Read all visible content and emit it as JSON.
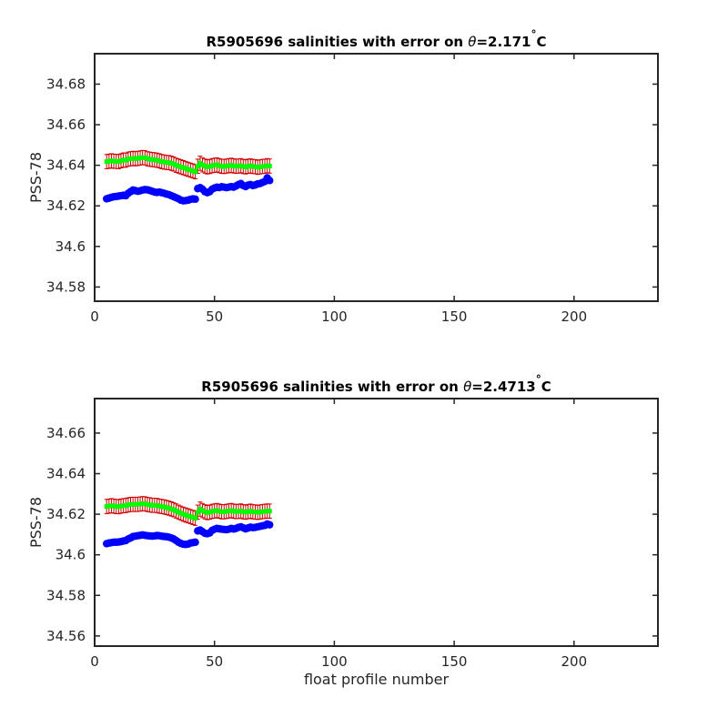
{
  "figure": {
    "xlabel": "float profile number"
  },
  "colors": {
    "raw_salinity": "#0000ff",
    "calibrated_salinity": "#00ff00",
    "error_bar": "#cc0000",
    "axes": "#262626"
  },
  "chart_data": [
    {
      "type": "scatter",
      "title_prefix": "R5905696 salinities with error on ",
      "title_theta": "θ",
      "title_value": "=2.171",
      "title_degree": "°",
      "title_unit": "C",
      "xlabel": "",
      "ylabel": "PSS-78",
      "xlim": [
        0,
        235
      ],
      "ylim": [
        34.573,
        34.695
      ],
      "xticks": [
        0,
        50,
        100,
        150,
        200
      ],
      "xtick_labels": [
        "0",
        "50",
        "100",
        "150",
        "200"
      ],
      "yticks": [
        34.58,
        34.6,
        34.62,
        34.64,
        34.66,
        34.68
      ],
      "ytick_labels": [
        "34.58",
        "34.6",
        "34.62",
        "34.64",
        "34.66",
        "34.68"
      ],
      "grid": false,
      "x": [
        5,
        6,
        7,
        8,
        9,
        10,
        11,
        12,
        13,
        14,
        15,
        16,
        17,
        18,
        19,
        20,
        21,
        22,
        23,
        24,
        25,
        26,
        27,
        28,
        29,
        30,
        31,
        32,
        33,
        34,
        35,
        36,
        37,
        38,
        39,
        40,
        41,
        42,
        43,
        44,
        45,
        46,
        47,
        48,
        49,
        50,
        51,
        52,
        53,
        54,
        55,
        56,
        57,
        58,
        59,
        60,
        61,
        62,
        63,
        64,
        65,
        66,
        67,
        68,
        69,
        70,
        71,
        72,
        73
      ],
      "series": [
        {
          "role": "raw",
          "values": [
            34.6235,
            34.6238,
            34.6242,
            34.6245,
            34.6246,
            34.6248,
            34.625,
            34.6252,
            34.625,
            34.6262,
            34.627,
            34.6278,
            34.6275,
            34.6272,
            34.6274,
            34.6278,
            34.628,
            34.6279,
            34.6276,
            34.6272,
            34.6268,
            34.6266,
            34.6268,
            34.6265,
            34.6262,
            34.6258,
            34.6255,
            34.625,
            34.6245,
            34.624,
            34.6235,
            34.6228,
            34.6225,
            34.6226,
            34.6228,
            34.6232,
            34.6234,
            34.6233,
            34.6285,
            34.629,
            34.6282,
            34.627,
            34.6265,
            34.627,
            34.6282,
            34.6288,
            34.6292,
            34.629,
            34.6294,
            34.6292,
            34.629,
            34.6292,
            34.6295,
            34.6292,
            34.6298,
            34.6305,
            34.631,
            34.63,
            34.6295,
            34.6302,
            34.6305,
            34.63,
            34.6303,
            34.6308,
            34.631,
            34.6315,
            34.632,
            34.6338,
            34.6325
          ]
        },
        {
          "role": "calibrated",
          "values": [
            34.6418,
            34.642,
            34.6422,
            34.642,
            34.6419,
            34.6418,
            34.6422,
            34.6426,
            34.6425,
            34.643,
            34.6432,
            34.6434,
            34.6432,
            34.6434,
            34.6436,
            34.6438,
            34.6437,
            34.6432,
            34.643,
            34.6428,
            34.6427,
            34.6425,
            34.6422,
            34.6418,
            34.6416,
            34.6414,
            34.6413,
            34.641,
            34.6406,
            34.64,
            34.6396,
            34.6392,
            34.6388,
            34.6384,
            34.638,
            34.6376,
            34.6372,
            34.6368,
            34.6395,
            34.641,
            34.6402,
            34.6396,
            34.6392,
            34.6394,
            34.6398,
            34.64,
            34.6402,
            34.6398,
            34.6395,
            34.6394,
            34.6396,
            34.6398,
            34.64,
            34.6397,
            34.6395,
            34.6396,
            34.6398,
            34.6394,
            34.6392,
            34.6395,
            34.6397,
            34.6394,
            34.6393,
            34.639,
            34.6392,
            34.6394,
            34.6395,
            34.6398,
            34.6396
          ]
        }
      ],
      "error": 0.0035
    },
    {
      "type": "scatter",
      "title_prefix": "R5905696 salinities with error on ",
      "title_theta": "θ",
      "title_value": "=2.4713",
      "title_degree": "°",
      "title_unit": "C",
      "xlabel": "float profile number",
      "ylabel": "PSS-78",
      "xlim": [
        0,
        235
      ],
      "ylim": [
        34.555,
        34.677
      ],
      "xticks": [
        0,
        50,
        100,
        150,
        200
      ],
      "xtick_labels": [
        "0",
        "50",
        "100",
        "150",
        "200"
      ],
      "yticks": [
        34.56,
        34.58,
        34.6,
        34.62,
        34.64,
        34.66
      ],
      "ytick_labels": [
        "34.56",
        "34.58",
        "34.6",
        "34.62",
        "34.64",
        "34.66"
      ],
      "grid": false,
      "x": [
        5,
        6,
        7,
        8,
        9,
        10,
        11,
        12,
        13,
        14,
        15,
        16,
        17,
        18,
        19,
        20,
        21,
        22,
        23,
        24,
        25,
        26,
        27,
        28,
        29,
        30,
        31,
        32,
        33,
        34,
        35,
        36,
        37,
        38,
        39,
        40,
        41,
        42,
        43,
        44,
        45,
        46,
        47,
        48,
        49,
        50,
        51,
        52,
        53,
        54,
        55,
        56,
        57,
        58,
        59,
        60,
        61,
        62,
        63,
        64,
        65,
        66,
        67,
        68,
        69,
        70,
        71,
        72,
        73
      ],
      "series": [
        {
          "role": "raw",
          "values": [
            34.6055,
            34.6058,
            34.606,
            34.6062,
            34.6062,
            34.6063,
            34.6065,
            34.6068,
            34.607,
            34.6078,
            34.6083,
            34.609,
            34.6092,
            34.6094,
            34.6096,
            34.6098,
            34.6096,
            34.6094,
            34.6093,
            34.6092,
            34.6093,
            34.6095,
            34.6094,
            34.6092,
            34.609,
            34.6089,
            34.6087,
            34.6083,
            34.6078,
            34.607,
            34.6062,
            34.6056,
            34.6052,
            34.6051,
            34.6053,
            34.6058,
            34.606,
            34.6062,
            34.6118,
            34.6122,
            34.6114,
            34.6106,
            34.6104,
            34.6108,
            34.612,
            34.6126,
            34.613,
            34.6128,
            34.6126,
            34.6125,
            34.6124,
            34.6126,
            34.613,
            34.6127,
            34.613,
            34.6135,
            34.6138,
            34.6133,
            34.6128,
            34.6132,
            34.6136,
            34.6134,
            34.6135,
            34.6138,
            34.614,
            34.6143,
            34.6145,
            34.6152,
            34.6148
          ]
        },
        {
          "role": "calibrated",
          "values": [
            34.6238,
            34.624,
            34.6242,
            34.624,
            34.6238,
            34.6237,
            34.624,
            34.6242,
            34.6243,
            34.6246,
            34.6248,
            34.6249,
            34.6248,
            34.6249,
            34.625,
            34.6252,
            34.6251,
            34.6248,
            34.6246,
            34.6244,
            34.6244,
            34.6243,
            34.624,
            34.6238,
            34.6236,
            34.6233,
            34.623,
            34.6226,
            34.6222,
            34.6216,
            34.621,
            34.6205,
            34.62,
            34.6196,
            34.6192,
            34.6188,
            34.6184,
            34.618,
            34.621,
            34.6225,
            34.6218,
            34.6212,
            34.6208,
            34.621,
            34.6214,
            34.6216,
            34.6218,
            34.6215,
            34.6212,
            34.6212,
            34.6214,
            34.6216,
            34.6218,
            34.6215,
            34.6213,
            34.6214,
            34.6216,
            34.6212,
            34.621,
            34.6213,
            34.6215,
            34.6212,
            34.6211,
            34.6209,
            34.6211,
            34.6213,
            34.6214,
            34.6216,
            34.6215
          ]
        }
      ],
      "error": 0.0035
    }
  ]
}
